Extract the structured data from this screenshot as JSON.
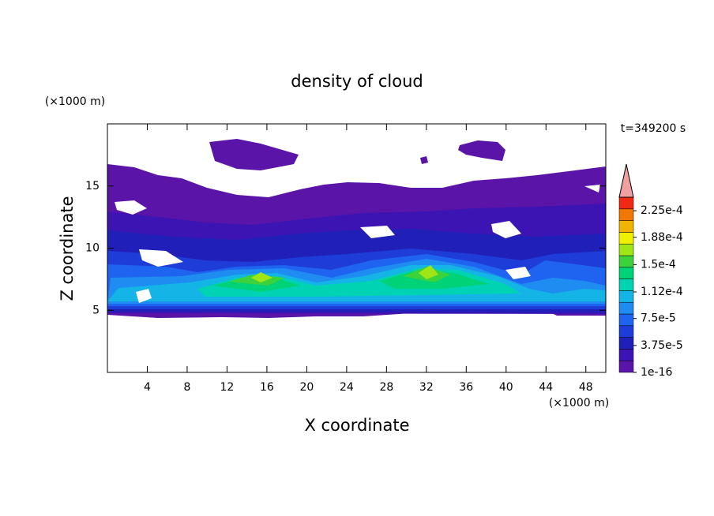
{
  "chart_data": {
    "type": "contour",
    "title": "density of cloud",
    "x_label": "X coordinate",
    "y_label": "Z coordinate",
    "x_unit": "(×1000 m)",
    "y_unit": "(×1000 m)",
    "annotation": "t=349200 s",
    "xlim": [
      0,
      50
    ],
    "xticks": [
      4,
      8,
      12,
      16,
      20,
      24,
      28,
      32,
      36,
      40,
      44,
      48
    ],
    "ylim": [
      0,
      20
    ],
    "yticks": [
      5,
      10,
      15
    ],
    "colorbar": {
      "lim": [
        1e-16,
        0.00024375
      ],
      "ticks": [
        1e-16,
        {
          "value": 3.75e-05,
          "label": "3.75e-5"
        },
        {
          "value": 7.5e-05,
          "label": "7.5e-5"
        },
        {
          "value": 0.000112,
          "label": "1.12e-4"
        },
        {
          "value": 0.00015,
          "label": "1.5e-4"
        },
        {
          "value": 0.000188,
          "label": "1.88e-4"
        },
        {
          "value": 0.000225,
          "label": "2.25e-4"
        }
      ],
      "colors": [
        "#5a14a8",
        "#3c14b4",
        "#2020b8",
        "#1e3cd8",
        "#1e64f0",
        "#1e8cf0",
        "#14b4e6",
        "#00d2b4",
        "#00d278",
        "#3cd23c",
        "#a0e614",
        "#f0f000",
        "#f0b400",
        "#f07800",
        "#f02814"
      ],
      "extend_color": "#f0a0a0"
    }
  }
}
